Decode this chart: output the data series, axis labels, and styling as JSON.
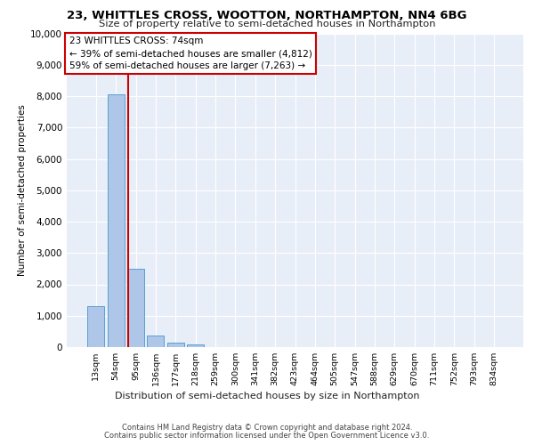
{
  "title1": "23, WHITTLES CROSS, WOOTTON, NORTHAMPTON, NN4 6BG",
  "title2": "Size of property relative to semi-detached houses in Northampton",
  "xlabel": "Distribution of semi-detached houses by size in Northampton",
  "ylabel": "Number of semi-detached properties",
  "categories": [
    "13sqm",
    "54sqm",
    "95sqm",
    "136sqm",
    "177sqm",
    "218sqm",
    "259sqm",
    "300sqm",
    "341sqm",
    "382sqm",
    "423sqm",
    "464sqm",
    "505sqm",
    "547sqm",
    "588sqm",
    "629sqm",
    "670sqm",
    "711sqm",
    "752sqm",
    "793sqm",
    "834sqm"
  ],
  "values": [
    1300,
    8050,
    2500,
    380,
    140,
    90,
    0,
    0,
    0,
    0,
    0,
    0,
    0,
    0,
    0,
    0,
    0,
    0,
    0,
    0,
    0
  ],
  "bar_color": "#aec6e8",
  "bar_edge_color": "#5a9fd4",
  "vline_x": 1.62,
  "vline_color": "#cc0000",
  "annotation_text": "23 WHITTLES CROSS: 74sqm\n← 39% of semi-detached houses are smaller (4,812)\n59% of semi-detached houses are larger (7,263) →",
  "annotation_box_color": "#ffffff",
  "annotation_box_edge": "#cc0000",
  "ylim": [
    0,
    10000
  ],
  "yticks": [
    0,
    1000,
    2000,
    3000,
    4000,
    5000,
    6000,
    7000,
    8000,
    9000,
    10000
  ],
  "footer1": "Contains HM Land Registry data © Crown copyright and database right 2024.",
  "footer2": "Contains public sector information licensed under the Open Government Licence v3.0.",
  "plot_bg_color": "#e8eef8"
}
